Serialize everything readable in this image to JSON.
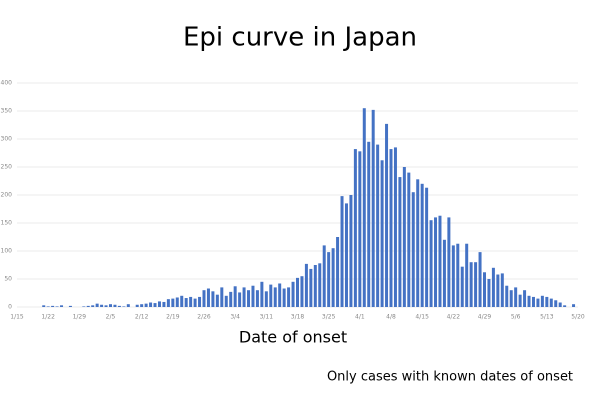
{
  "chart_data": {
    "type": "bar",
    "title": "Epi curve in Japan",
    "x_label": "Date of onset",
    "annotation": "Only cases with known dates of onset",
    "categories": [
      "1/15",
      null,
      null,
      null,
      null,
      null,
      null,
      "1/22",
      null,
      null,
      null,
      null,
      null,
      null,
      "1/29",
      null,
      null,
      null,
      null,
      null,
      null,
      "2/5",
      null,
      null,
      null,
      null,
      null,
      null,
      "2/12",
      null,
      null,
      null,
      null,
      null,
      null,
      "2/19",
      null,
      null,
      null,
      null,
      null,
      null,
      "2/26",
      null,
      null,
      null,
      null,
      null,
      null,
      "3/4",
      null,
      null,
      null,
      null,
      null,
      null,
      "3/11",
      null,
      null,
      null,
      null,
      null,
      null,
      "3/18",
      null,
      null,
      null,
      null,
      null,
      null,
      "3/25",
      null,
      null,
      null,
      null,
      null,
      null,
      "4/1",
      null,
      null,
      null,
      null,
      null,
      null,
      "4/8",
      null,
      null,
      null,
      null,
      null,
      null,
      "4/15",
      null,
      null,
      null,
      null,
      null,
      null,
      "4/22",
      null,
      null,
      null,
      null,
      null,
      null,
      "4/29",
      null,
      null,
      null,
      null,
      null,
      null,
      "5/6",
      null,
      null,
      null,
      null,
      null,
      null,
      "5/13",
      null,
      null,
      null,
      null,
      null,
      null,
      "5/20"
    ],
    "values": [
      0,
      0,
      0,
      0,
      0,
      0,
      3,
      1,
      2,
      1,
      3,
      0,
      2,
      0,
      0,
      1,
      2,
      3,
      6,
      4,
      3,
      5,
      4,
      2,
      1,
      5,
      0,
      4,
      5,
      6,
      8,
      7,
      10,
      9,
      14,
      15,
      17,
      20,
      16,
      18,
      15,
      18,
      30,
      33,
      28,
      22,
      35,
      20,
      27,
      37,
      26,
      35,
      30,
      38,
      30,
      45,
      28,
      40,
      35,
      42,
      33,
      35,
      45,
      52,
      55,
      77,
      68,
      75,
      78,
      110,
      98,
      105,
      125,
      198,
      185,
      200,
      282,
      278,
      355,
      295,
      352,
      290,
      262,
      327,
      282,
      285,
      232,
      250,
      240,
      205,
      228,
      220,
      213,
      155,
      160,
      163,
      120,
      160,
      110,
      113,
      72,
      113,
      80,
      80,
      98,
      62,
      50,
      70,
      58,
      60,
      38,
      30,
      35,
      22,
      30,
      20,
      18,
      15,
      20,
      18,
      15,
      12,
      8,
      3,
      0,
      5,
      0
    ],
    "color": "#4472c4",
    "ylim": [
      0,
      400
    ],
    "yticks": [
      0,
      50,
      100,
      150,
      200,
      250,
      300,
      350,
      400
    ],
    "grid": true
  }
}
